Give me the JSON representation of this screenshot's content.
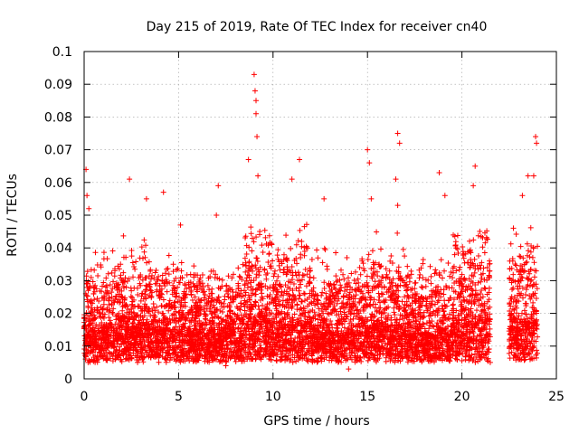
{
  "chart_data": {
    "type": "scatter",
    "title": "Day 215 of 2019, Rate Of TEC Index for receiver cn40",
    "xlabel": "GPS time / hours",
    "ylabel": "ROTI / TECUs",
    "xlim": [
      0,
      25
    ],
    "ylim": [
      0,
      0.1
    ],
    "x_ticks": [
      "0",
      "5",
      "10",
      "15",
      "20",
      "25"
    ],
    "y_ticks": [
      "0",
      "0.01",
      "0.02",
      "0.03",
      "0.04",
      "0.05",
      "0.06",
      "0.07",
      "0.08",
      "0.09",
      "0.1"
    ],
    "grid": true,
    "marker": "+",
    "color": "#ff0000",
    "notable_points": [
      {
        "x": 0.1,
        "y": 0.064
      },
      {
        "x": 0.15,
        "y": 0.056
      },
      {
        "x": 0.25,
        "y": 0.052
      },
      {
        "x": 2.4,
        "y": 0.061
      },
      {
        "x": 3.3,
        "y": 0.055
      },
      {
        "x": 4.2,
        "y": 0.057
      },
      {
        "x": 5.1,
        "y": 0.047
      },
      {
        "x": 7.1,
        "y": 0.059
      },
      {
        "x": 7.0,
        "y": 0.05
      },
      {
        "x": 9.0,
        "y": 0.093
      },
      {
        "x": 9.05,
        "y": 0.088
      },
      {
        "x": 9.1,
        "y": 0.085
      },
      {
        "x": 9.1,
        "y": 0.081
      },
      {
        "x": 9.15,
        "y": 0.074
      },
      {
        "x": 8.7,
        "y": 0.067
      },
      {
        "x": 9.2,
        "y": 0.062
      },
      {
        "x": 11.0,
        "y": 0.061
      },
      {
        "x": 11.4,
        "y": 0.067
      },
      {
        "x": 12.7,
        "y": 0.055
      },
      {
        "x": 15.0,
        "y": 0.07
      },
      {
        "x": 15.1,
        "y": 0.066
      },
      {
        "x": 15.2,
        "y": 0.055
      },
      {
        "x": 16.6,
        "y": 0.075
      },
      {
        "x": 16.7,
        "y": 0.072
      },
      {
        "x": 16.5,
        "y": 0.061
      },
      {
        "x": 16.6,
        "y": 0.053
      },
      {
        "x": 18.8,
        "y": 0.063
      },
      {
        "x": 19.1,
        "y": 0.056
      },
      {
        "x": 20.7,
        "y": 0.065
      },
      {
        "x": 20.6,
        "y": 0.059
      },
      {
        "x": 23.2,
        "y": 0.056
      },
      {
        "x": 23.5,
        "y": 0.062
      },
      {
        "x": 23.8,
        "y": 0.062
      },
      {
        "x": 23.9,
        "y": 0.074
      },
      {
        "x": 23.95,
        "y": 0.072
      },
      {
        "x": 21.5,
        "y": 0.005
      },
      {
        "x": 14.0,
        "y": 0.003
      },
      {
        "x": 7.5,
        "y": 0.004
      }
    ],
    "density_segments": [
      {
        "x_start": 0.0,
        "x_end": 1.0,
        "base": 0.012,
        "spread": 0.01,
        "peak": 0.04
      },
      {
        "x_start": 1.0,
        "x_end": 3.5,
        "base": 0.013,
        "spread": 0.011,
        "peak": 0.045
      },
      {
        "x_start": 3.5,
        "x_end": 6.0,
        "base": 0.012,
        "spread": 0.01,
        "peak": 0.04
      },
      {
        "x_start": 6.0,
        "x_end": 8.5,
        "base": 0.011,
        "spread": 0.009,
        "peak": 0.035
      },
      {
        "x_start": 8.5,
        "x_end": 9.6,
        "base": 0.016,
        "spread": 0.014,
        "peak": 0.05
      },
      {
        "x_start": 9.6,
        "x_end": 12.0,
        "base": 0.015,
        "spread": 0.012,
        "peak": 0.048
      },
      {
        "x_start": 12.0,
        "x_end": 14.5,
        "base": 0.012,
        "spread": 0.009,
        "peak": 0.04
      },
      {
        "x_start": 14.5,
        "x_end": 17.0,
        "base": 0.013,
        "spread": 0.011,
        "peak": 0.045
      },
      {
        "x_start": 17.0,
        "x_end": 19.5,
        "base": 0.012,
        "spread": 0.009,
        "peak": 0.04
      },
      {
        "x_start": 19.5,
        "x_end": 21.5,
        "base": 0.016,
        "spread": 0.013,
        "peak": 0.046
      },
      {
        "x_start": 22.5,
        "x_end": 24.0,
        "base": 0.016,
        "spread": 0.013,
        "peak": 0.05
      }
    ]
  }
}
